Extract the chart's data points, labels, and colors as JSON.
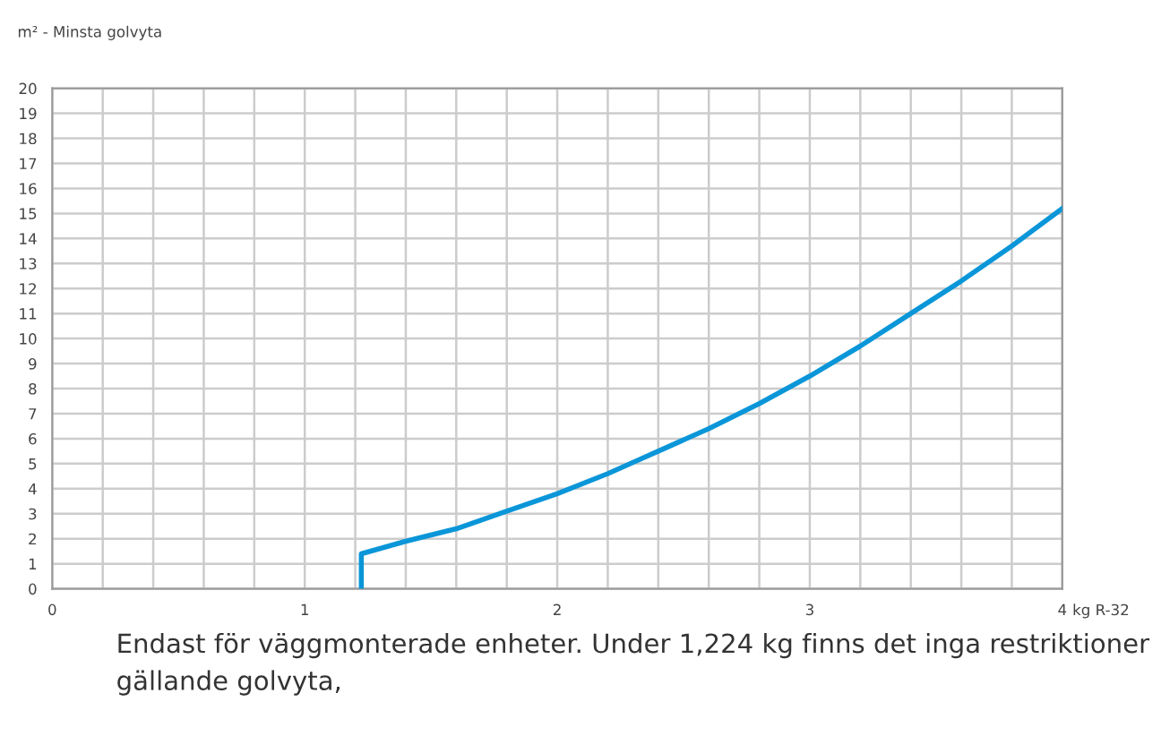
{
  "chart_data": {
    "type": "line",
    "ylabel": "m² - Minsta golvyta",
    "xlabel": "kg R-32",
    "series": [
      {
        "color": "#0a96d8",
        "x": [
          1.224,
          1.224,
          1.4,
          1.6,
          1.8,
          2.0,
          2.2,
          2.4,
          2.6,
          2.8,
          3.0,
          3.2,
          3.4,
          3.6,
          3.8,
          4.0
        ],
        "values": [
          0,
          1.4,
          1.9,
          2.4,
          3.1,
          3.8,
          4.6,
          5.5,
          6.4,
          7.4,
          8.5,
          9.7,
          11.0,
          12.3,
          13.7,
          15.2
        ]
      }
    ],
    "xlim": [
      0,
      4
    ],
    "ylim": [
      0,
      20
    ],
    "xticks": [
      0,
      {
        "value": 0.2,
        "label": null
      },
      {
        "value": 0.4,
        "label": null
      },
      {
        "value": 0.6,
        "label": null
      },
      {
        "value": 0.8,
        "label": null
      },
      1,
      {
        "value": 1.2,
        "label": null
      },
      {
        "value": 1.4,
        "label": null
      },
      {
        "value": 1.6,
        "label": null
      },
      {
        "value": 1.8,
        "label": null
      },
      2,
      {
        "value": 2.2,
        "label": null
      },
      {
        "value": 2.4,
        "label": null
      },
      {
        "value": 2.6,
        "label": null
      },
      {
        "value": 2.8,
        "label": null
      },
      3,
      {
        "value": 3.2,
        "label": null
      },
      {
        "value": 3.4,
        "label": null
      },
      {
        "value": 3.6,
        "label": null
      },
      {
        "value": 3.8,
        "label": null
      },
      4
    ],
    "yticks": [
      0,
      1,
      2,
      3,
      4,
      5,
      6,
      7,
      8,
      9,
      10,
      11,
      12,
      13,
      14,
      15,
      16,
      17,
      18,
      19,
      20
    ],
    "grid": true,
    "marker": "none",
    "line_style": "solid",
    "annotations": [
      "Endast för väggmonterade enheter. Under 1,224 kg finns det inga restriktioner gällande golvyta,"
    ]
  }
}
